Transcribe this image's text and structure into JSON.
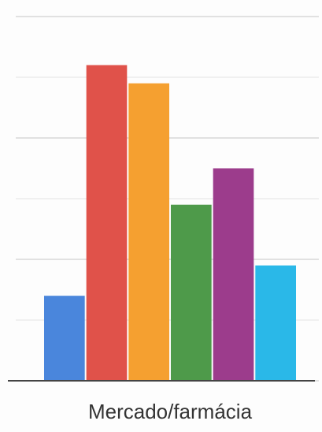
{
  "chart_data": {
    "type": "bar",
    "categories": [
      "Mercado/farmácia"
    ],
    "series": [
      {
        "color": "#4a86dc",
        "values": [
          1.4
        ]
      },
      {
        "color": "#e0524a",
        "values": [
          5.2
        ]
      },
      {
        "color": "#f5a030",
        "values": [
          4.9
        ]
      },
      {
        "color": "#4e9a4a",
        "values": [
          2.9
        ]
      },
      {
        "color": "#9c3c8c",
        "values": [
          3.5
        ]
      },
      {
        "color": "#2ab8e8",
        "values": [
          1.9
        ]
      }
    ],
    "ylim": [
      0,
      6
    ],
    "yticks": [
      0,
      1,
      2,
      3,
      4,
      5,
      6
    ],
    "grid": true
  }
}
